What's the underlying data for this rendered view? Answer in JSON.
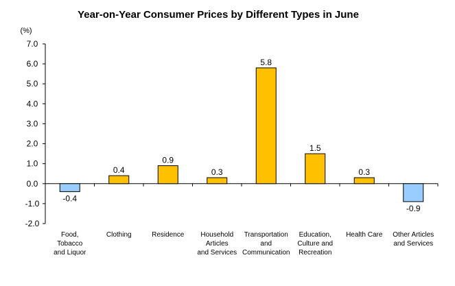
{
  "colors": {
    "positive": "#FFC000",
    "negative": "#99CCFF",
    "axis": "#000000",
    "bar_stroke": "#000000"
  },
  "chart_data": {
    "type": "bar",
    "title": "Year-on-Year Consumer Prices by Different Types in June",
    "ylabel": "(%)",
    "ylim": [
      -2.0,
      7.0
    ],
    "yticks": [
      "7.0",
      "6.0",
      "5.0",
      "4.0",
      "3.0",
      "2.0",
      "1.0",
      "0.0",
      "-1.0",
      "-2.0"
    ],
    "tick_values": [
      7,
      6,
      5,
      4,
      3,
      2,
      1,
      0,
      -1,
      -2
    ],
    "grid": false,
    "legend": "none",
    "categories": [
      [
        "Food,",
        "Tobacco",
        "and Liquor"
      ],
      [
        "Clothing"
      ],
      [
        "Residence"
      ],
      [
        "Household",
        "Articles",
        "and Services"
      ],
      [
        "Transportation",
        "and",
        "Communication"
      ],
      [
        "Education,",
        "Culture and",
        "Recreation"
      ],
      [
        "Health Care"
      ],
      [
        "Other Articles",
        "and Services"
      ]
    ],
    "values": [
      -0.4,
      0.4,
      0.9,
      0.3,
      5.8,
      1.5,
      0.3,
      -0.9
    ],
    "value_labels": [
      "-0.4",
      "0.4",
      "0.9",
      "0.3",
      "5.8",
      "1.5",
      "0.3",
      "-0.9"
    ]
  }
}
